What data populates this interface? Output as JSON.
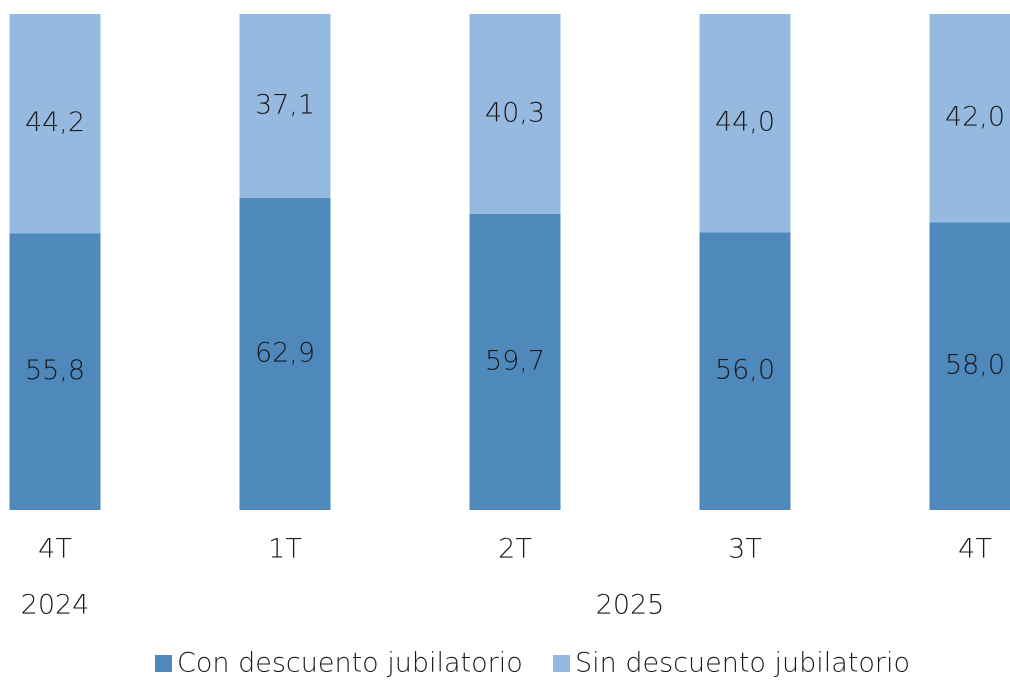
{
  "chart_data": {
    "type": "stacked_bar",
    "categories": [
      "4T",
      "1T",
      "2T",
      "3T",
      "4T"
    ],
    "groups": [
      {
        "label": "2024",
        "size": 1
      },
      {
        "label": "2025",
        "size": 4
      }
    ],
    "ylim": [
      0,
      100
    ],
    "legend": "bottom",
    "series": [
      {
        "name": "Con descuento jubilatorio",
        "color": "#4f88bb",
        "values": [
          55.8,
          62.9,
          59.7,
          56.0,
          58.0
        ],
        "value_labels": [
          "55,8",
          "62,9",
          "59,7",
          "56,0",
          "58,0"
        ]
      },
      {
        "name": "Sin descuento jubilatorio",
        "color": "#95b9df",
        "values": [
          44.2,
          37.1,
          40.3,
          44.0,
          42.0
        ],
        "value_labels": [
          "44,2",
          "37,1",
          "40,3",
          "44,0",
          "42,0"
        ]
      }
    ]
  }
}
